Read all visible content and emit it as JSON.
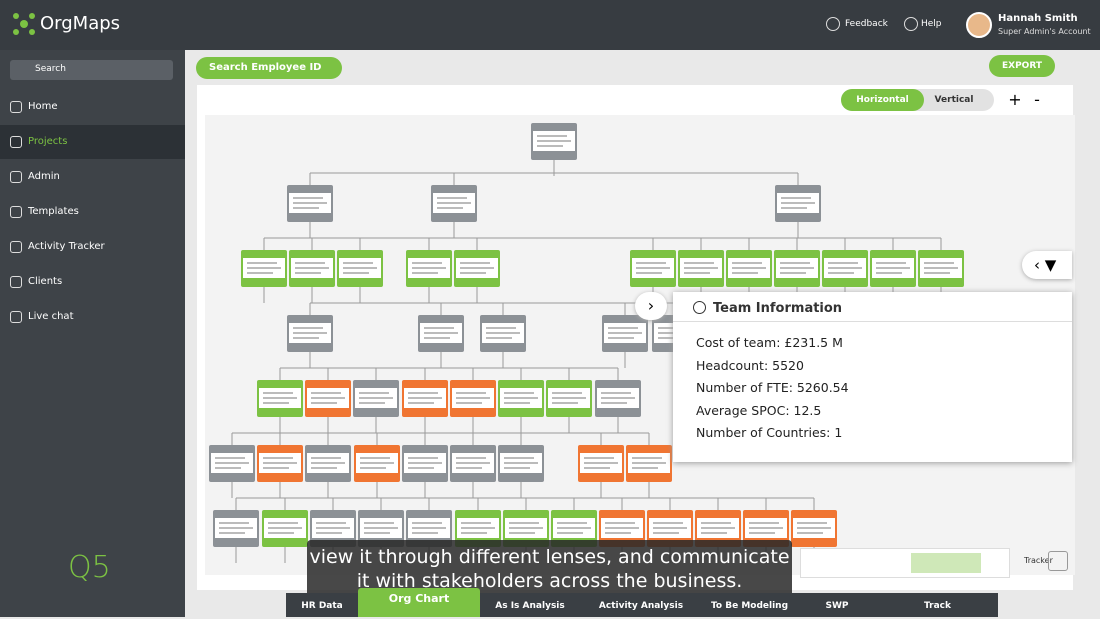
{
  "header": {
    "brand": "OrgMaps",
    "feedback": "Feedback",
    "help": "Help",
    "user_name": "Hannah Smith",
    "user_role": "Super Admin's Account"
  },
  "sidebar": {
    "search": "Search",
    "items": [
      "Home",
      "Projects",
      "Admin",
      "Templates",
      "Activity Tracker",
      "Clients",
      "Live chat"
    ],
    "logo": "Q5"
  },
  "toolbar": {
    "search_employee": "Search Employee ID",
    "export": "EXPORT",
    "horizontal": "Horizontal",
    "vertical": "Vertical",
    "zoom_in": "+",
    "zoom_out": "-"
  },
  "team_info": {
    "title": "Team Information",
    "lines": [
      "Cost of team: £231.5 M",
      "Headcount: 5520",
      "Number of FTE: 5260.54",
      "Average SPOC: 12.5",
      "Number of Countries: 1"
    ]
  },
  "caption": {
    "lines": [
      "view it through different lenses, and communicate",
      "it with stakeholders across the business."
    ]
  },
  "minimap": {
    "tracker": "Tracker"
  },
  "tabs": [
    "HR Data",
    "Org Chart",
    "As Is Analysis",
    "Activity Analysis",
    "To Be Modeling",
    "SWP",
    "Track"
  ]
}
